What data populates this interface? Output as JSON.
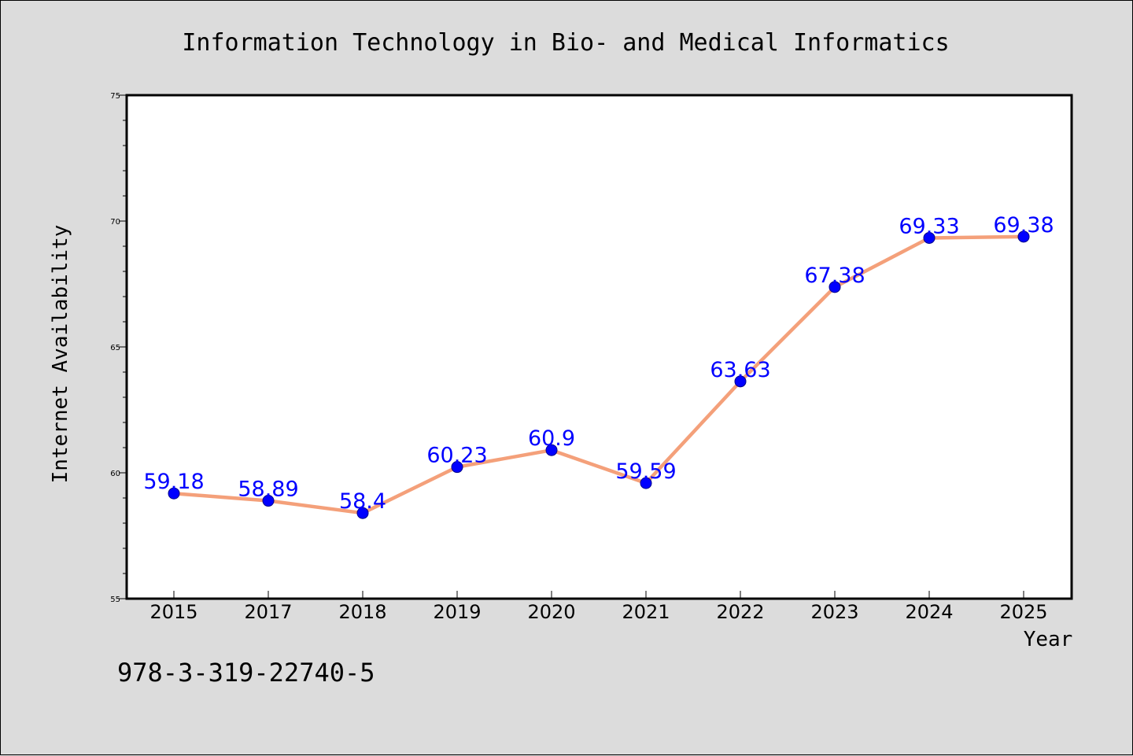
{
  "chart_data": {
    "type": "line",
    "title": "Information Technology in Bio- and Medical Informatics",
    "xlabel": "Year",
    "ylabel": "Internet Availability",
    "categories": [
      "2015",
      "2017",
      "2018",
      "2019",
      "2020",
      "2021",
      "2022",
      "2023",
      "2024",
      "2025"
    ],
    "series": [
      {
        "values": [
          59.18,
          58.89,
          58.4,
          60.23,
          60.9,
          59.59,
          63.63,
          67.38,
          69.33,
          69.38
        ],
        "labels": [
          "59.18",
          "58.89",
          "58.4",
          "60.23",
          "60.9",
          "59.59",
          "63.63",
          "67.38",
          "69.33",
          "69.38"
        ]
      }
    ],
    "ylim": [
      55,
      75
    ],
    "yticks": [
      "55",
      "60",
      "65",
      "70",
      "75"
    ],
    "grid": false,
    "legend": "none",
    "colors": {
      "line": "#f4a07a",
      "marker": "#0000ff",
      "data_label": "#0000ff",
      "plot_background": "#ffffff",
      "page_background": "#dcdcdc"
    }
  },
  "footer": {
    "isbn": "978-3-319-22740-5"
  }
}
